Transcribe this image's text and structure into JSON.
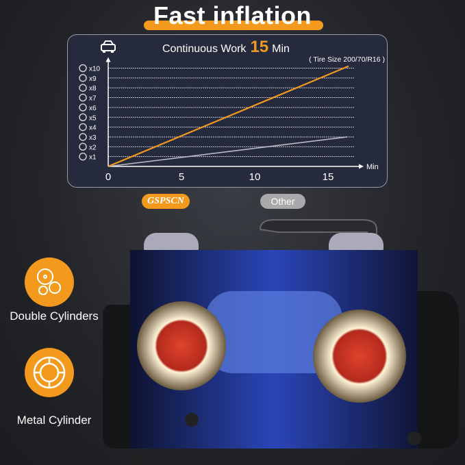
{
  "title": "Fast inflation",
  "chart_data": {
    "type": "line",
    "title_prefix": "Continuous Work",
    "title_highlight": "15",
    "title_suffix": "Min",
    "subtitle": "( Tire Size 200/70/R16 )",
    "xlabel": "Min",
    "x_ticks": [
      0,
      5,
      10,
      15
    ],
    "y_ticks": [
      "x1",
      "x2",
      "x3",
      "x4",
      "x5",
      "x6",
      "x7",
      "x8",
      "x9",
      "x10"
    ],
    "xlim": [
      0,
      17
    ],
    "ylim": [
      0,
      10.5
    ],
    "grid": "horizontal dashed",
    "series": [
      {
        "name": "GSPSCN",
        "color": "#f39a1e",
        "points": [
          [
            0,
            0
          ],
          [
            16.4,
            10.2
          ]
        ]
      },
      {
        "name": "Other",
        "color": "#b9bcc6",
        "points": [
          [
            0,
            0
          ],
          [
            16.3,
            3
          ]
        ]
      }
    ],
    "y_icon": "tire-icon",
    "header_icon": "car-icon"
  },
  "legend": {
    "gspscn": "GSPSCN",
    "other": "Other"
  },
  "features": [
    {
      "label": "Double Cylinders",
      "icon": "radiation-cylinders-icon"
    },
    {
      "label": "Metal Cylinder",
      "icon": "cylinder-ring-icon"
    }
  ],
  "colors": {
    "accent": "#f39a1e",
    "panel": "#262a3d"
  }
}
